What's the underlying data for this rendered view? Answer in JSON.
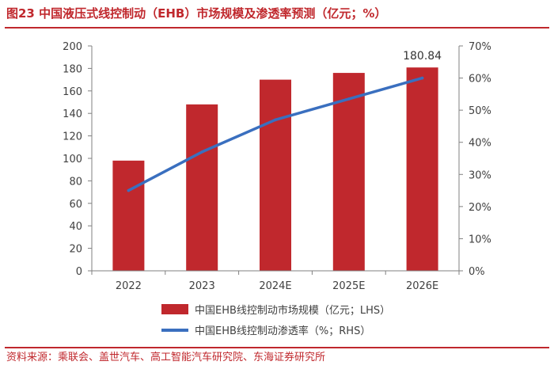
{
  "figure_title": "图23  中国液压式线控制动（EHB）市场规模及渗透率预测（亿元；%）",
  "source": "资料来源：乘联会、盖世汽车、高工智能汽车研究院、东海证券研究所",
  "colors": {
    "accent": "#c0282d",
    "bar": "#c0282d",
    "line": "#3a6fbf",
    "axis": "#808080",
    "text": "#404040"
  },
  "chart_data": {
    "type": "bar",
    "categories": [
      "2022",
      "2023",
      "2024E",
      "2025E",
      "2026E"
    ],
    "series": [
      {
        "name": "中国EHB线控制动市场规模（亿元；LHS）",
        "type": "bar",
        "axis": "left",
        "values": [
          98,
          148,
          170,
          176,
          180.84
        ]
      },
      {
        "name": "中国EHB线控制动渗透率（%；RHS）",
        "type": "line",
        "axis": "right",
        "values": [
          25,
          37,
          47,
          53.5,
          60
        ]
      }
    ],
    "y_left": {
      "range": [
        0,
        200
      ],
      "ticks": [
        "0",
        "20",
        "40",
        "60",
        "80",
        "100",
        "120",
        "140",
        "160",
        "180",
        "200"
      ]
    },
    "y_right": {
      "range": [
        0,
        70
      ],
      "ticks": [
        "0%",
        "10%",
        "20%",
        "30%",
        "40%",
        "50%",
        "60%",
        "70%"
      ]
    },
    "annotations": [
      {
        "series": 0,
        "index": 4,
        "text": "180.84"
      }
    ],
    "legend_position": "bottom",
    "grid": false
  }
}
